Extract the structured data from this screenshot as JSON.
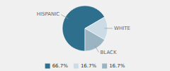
{
  "chart_data": {
    "type": "pie",
    "categories": [
      "HISPANIC",
      "WHITE",
      "BLACK"
    ],
    "values": [
      66.7,
      16.7,
      16.7
    ],
    "value_labels": [
      "66.7%",
      "16.7%",
      "16.7%"
    ],
    "colors": [
      "#2e6f8e",
      "#ccdce6",
      "#9ab4c2"
    ],
    "legend": "bottom"
  }
}
